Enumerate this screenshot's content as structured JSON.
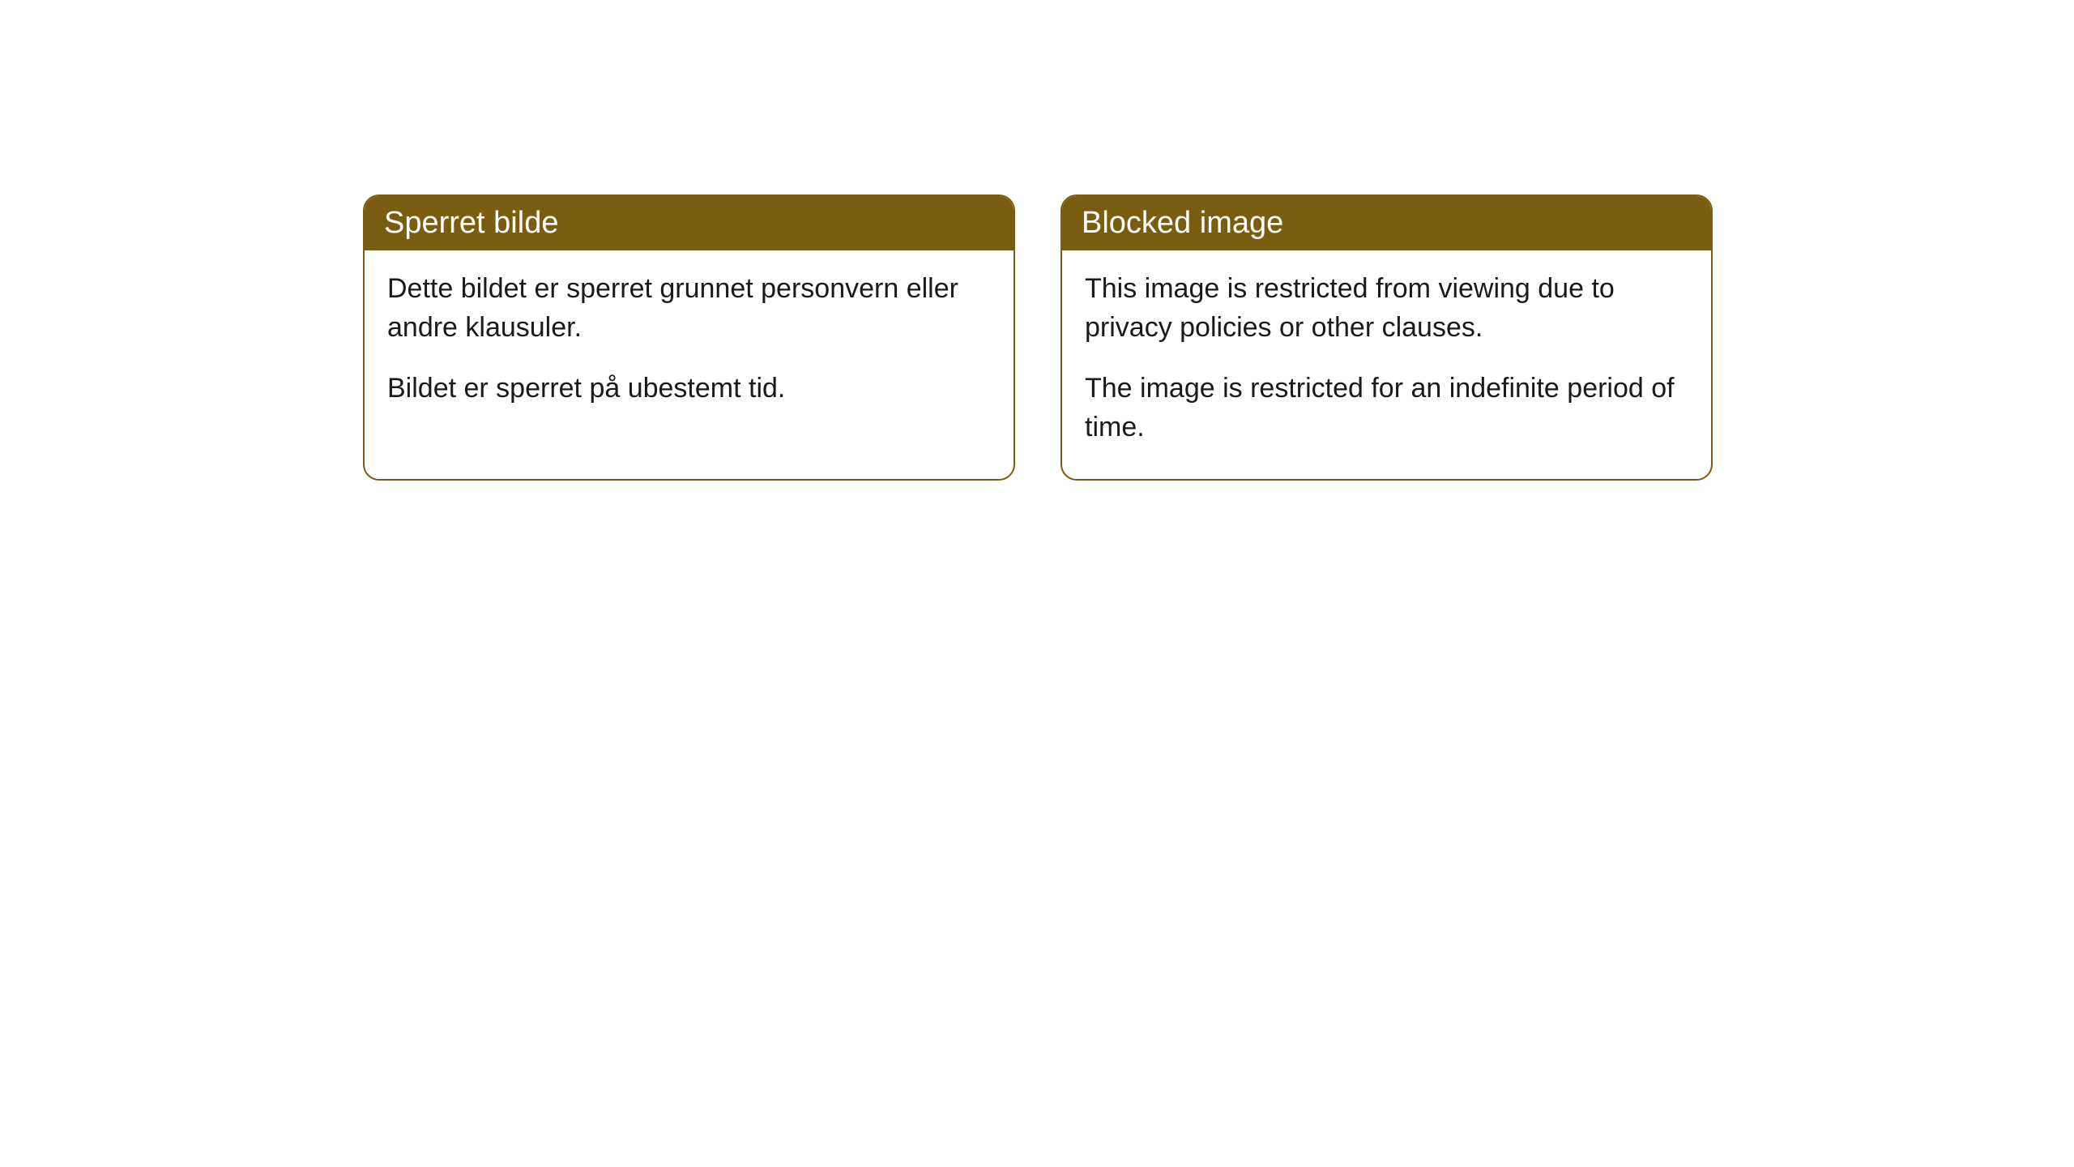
{
  "cards": [
    {
      "title": "Sperret bilde",
      "paragraph1": "Dette bildet er sperret grunnet personvern eller andre klausuler.",
      "paragraph2": "Bildet er sperret på ubestemt tid."
    },
    {
      "title": "Blocked image",
      "paragraph1": "This image is restricted from viewing due to privacy policies or other clauses.",
      "paragraph2": "The image is restricted for an indefinite period of time."
    }
  ],
  "styling": {
    "header_background": "#7a5d11",
    "header_text_color": "#ffffff",
    "border_color": "#7a5d11",
    "body_background": "#ffffff",
    "body_text_color": "#1a1a1a",
    "border_radius": 20,
    "title_fontsize": 38,
    "body_fontsize": 34
  }
}
